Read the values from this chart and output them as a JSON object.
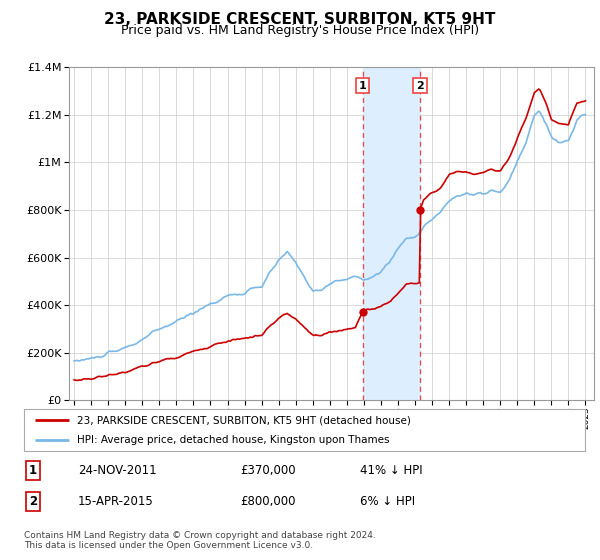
{
  "title": "23, PARKSIDE CRESCENT, SURBITON, KT5 9HT",
  "subtitle": "Price paid vs. HM Land Registry's House Price Index (HPI)",
  "title_fontsize": 11,
  "subtitle_fontsize": 9,
  "hpi_color": "#7ab8e8",
  "price_color": "#cc0000",
  "background_color": "#ffffff",
  "grid_color": "#cccccc",
  "sale1_date": 2011.92,
  "sale2_date": 2015.29,
  "sale1_price": 370000,
  "sale2_price": 800000,
  "legend_label1": "23, PARKSIDE CRESCENT, SURBITON, KT5 9HT (detached house)",
  "legend_label2": "HPI: Average price, detached house, Kingston upon Thames",
  "table_row1": [
    "1",
    "24-NOV-2011",
    "£370,000",
    "41% ↓ HPI"
  ],
  "table_row2": [
    "2",
    "15-APR-2015",
    "£800,000",
    "6% ↓ HPI"
  ],
  "footnote": "Contains HM Land Registry data © Crown copyright and database right 2024.\nThis data is licensed under the Open Government Licence v3.0.",
  "xmin": 1995,
  "xmax": 2025.5,
  "ymin": 0,
  "ymax": 1400000,
  "highlight_x1": 2011.92,
  "highlight_x2": 2015.29,
  "highlight_color": "#ddeeff",
  "vline_color": "#ee4444"
}
